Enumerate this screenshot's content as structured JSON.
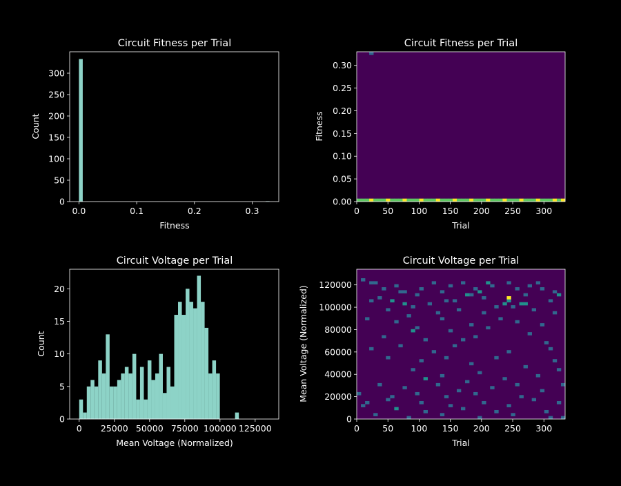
{
  "colors": {
    "background": "#000000",
    "foreground": "#ffffff",
    "bar": "#8dd3c7",
    "heat_low": "#440154",
    "heat_mid": "#31688e",
    "heat_mid2": "#21918c",
    "heat_high": "#5ec962",
    "heat_max": "#fde725"
  },
  "chart_data": [
    {
      "type": "bar",
      "title": "Circuit Fitness per Trial",
      "xlabel": "Fitness",
      "ylabel": "Count",
      "xlim": [
        -0.016,
        0.346
      ],
      "ylim": [
        0,
        350
      ],
      "xticks": [
        "0.0",
        "0.1",
        "0.2",
        "0.3"
      ],
      "xtick_values": [
        0.0,
        0.1,
        0.2,
        0.3
      ],
      "yticks": [
        "0",
        "50",
        "100",
        "150",
        "200",
        "250",
        "300"
      ],
      "ytick_values": [
        0,
        50,
        100,
        150,
        200,
        250,
        300
      ],
      "bins": [
        {
          "x0": 0.0,
          "x1": 0.0066,
          "count": 333
        },
        {
          "x0": 0.3234,
          "x1": 0.33,
          "count": 1
        }
      ]
    },
    {
      "type": "heatmap",
      "title": "Circuit Fitness per Trial",
      "xlabel": "Trial",
      "ylabel": "Fitness",
      "xlim": [
        0,
        334
      ],
      "ylim": [
        0,
        0.33
      ],
      "xticks": [
        "0",
        "50",
        "100",
        "150",
        "200",
        "250",
        "300"
      ],
      "xtick_values": [
        0,
        50,
        100,
        150,
        200,
        250,
        300
      ],
      "yticks": [
        "0.00",
        "0.05",
        "0.10",
        "0.15",
        "0.20",
        "0.25",
        "0.30"
      ],
      "ytick_values": [
        0,
        0.05,
        0.1,
        0.15,
        0.2,
        0.25,
        0.3
      ],
      "nx": 50,
      "ny": 50,
      "cells": [
        {
          "xi": 0,
          "yi": 0,
          "v": 3
        },
        {
          "xi": 1,
          "yi": 0,
          "v": 3
        },
        {
          "xi": 2,
          "yi": 0,
          "v": 3
        },
        {
          "xi": 3,
          "yi": 0,
          "v": 4
        },
        {
          "xi": 4,
          "yi": 0,
          "v": 3
        },
        {
          "xi": 5,
          "yi": 0,
          "v": 3
        },
        {
          "xi": 6,
          "yi": 0,
          "v": 3
        },
        {
          "xi": 7,
          "yi": 0,
          "v": 4
        },
        {
          "xi": 8,
          "yi": 0,
          "v": 3
        },
        {
          "xi": 9,
          "yi": 0,
          "v": 3
        },
        {
          "xi": 10,
          "yi": 0,
          "v": 3
        },
        {
          "xi": 11,
          "yi": 0,
          "v": 4
        },
        {
          "xi": 12,
          "yi": 0,
          "v": 3
        },
        {
          "xi": 13,
          "yi": 0,
          "v": 3
        },
        {
          "xi": 14,
          "yi": 0,
          "v": 3
        },
        {
          "xi": 15,
          "yi": 0,
          "v": 4
        },
        {
          "xi": 16,
          "yi": 0,
          "v": 3
        },
        {
          "xi": 17,
          "yi": 0,
          "v": 3
        },
        {
          "xi": 18,
          "yi": 0,
          "v": 3
        },
        {
          "xi": 19,
          "yi": 0,
          "v": 4
        },
        {
          "xi": 20,
          "yi": 0,
          "v": 3
        },
        {
          "xi": 21,
          "yi": 0,
          "v": 3
        },
        {
          "xi": 22,
          "yi": 0,
          "v": 3
        },
        {
          "xi": 23,
          "yi": 0,
          "v": 4
        },
        {
          "xi": 24,
          "yi": 0,
          "v": 3
        },
        {
          "xi": 25,
          "yi": 0,
          "v": 3
        },
        {
          "xi": 26,
          "yi": 0,
          "v": 3
        },
        {
          "xi": 27,
          "yi": 0,
          "v": 4
        },
        {
          "xi": 28,
          "yi": 0,
          "v": 3
        },
        {
          "xi": 29,
          "yi": 0,
          "v": 3
        },
        {
          "xi": 30,
          "yi": 0,
          "v": 3
        },
        {
          "xi": 31,
          "yi": 0,
          "v": 4
        },
        {
          "xi": 32,
          "yi": 0,
          "v": 3
        },
        {
          "xi": 33,
          "yi": 0,
          "v": 3
        },
        {
          "xi": 34,
          "yi": 0,
          "v": 3
        },
        {
          "xi": 35,
          "yi": 0,
          "v": 4
        },
        {
          "xi": 36,
          "yi": 0,
          "v": 3
        },
        {
          "xi": 37,
          "yi": 0,
          "v": 3
        },
        {
          "xi": 38,
          "yi": 0,
          "v": 3
        },
        {
          "xi": 39,
          "yi": 0,
          "v": 4
        },
        {
          "xi": 40,
          "yi": 0,
          "v": 3
        },
        {
          "xi": 41,
          "yi": 0,
          "v": 3
        },
        {
          "xi": 42,
          "yi": 0,
          "v": 3
        },
        {
          "xi": 43,
          "yi": 0,
          "v": 4
        },
        {
          "xi": 44,
          "yi": 0,
          "v": 3
        },
        {
          "xi": 45,
          "yi": 0,
          "v": 3
        },
        {
          "xi": 46,
          "yi": 0,
          "v": 3
        },
        {
          "xi": 47,
          "yi": 0,
          "v": 4
        },
        {
          "xi": 48,
          "yi": 0,
          "v": 3
        },
        {
          "xi": 49,
          "yi": 0,
          "v": 4
        },
        {
          "xi": 3,
          "yi": 49,
          "v": 1
        }
      ]
    },
    {
      "type": "bar",
      "title": "Circuit Voltage per Trial",
      "xlabel": "Mean Voltage (Normalized)",
      "ylabel": "Count",
      "xlim": [
        -6750,
        141750
      ],
      "ylim": [
        0,
        23
      ],
      "xticks": [
        "0",
        "25000",
        "50000",
        "75000",
        "100000",
        "125000"
      ],
      "xtick_values": [
        0,
        25000,
        50000,
        75000,
        100000,
        125000
      ],
      "yticks": [
        "0",
        "5",
        "10",
        "15",
        "20"
      ],
      "ytick_values": [
        0,
        5,
        10,
        15,
        20
      ],
      "bin_start": 0,
      "bin_width": 2700,
      "counts": [
        3,
        1,
        5,
        6,
        5,
        9,
        7,
        13,
        5,
        5,
        6,
        7,
        8,
        7,
        10,
        3,
        8,
        3,
        9,
        6,
        7,
        10,
        4,
        8,
        5,
        16,
        18,
        16,
        20,
        18,
        17,
        22,
        18,
        14,
        7,
        9,
        7,
        0,
        0,
        0,
        0,
        1
      ]
    },
    {
      "type": "heatmap",
      "title": "Circuit Voltage per Trial",
      "xlabel": "Trial",
      "ylabel": "Mean Voltage (Normalized)",
      "xlim": [
        0,
        334
      ],
      "ylim": [
        0,
        134000
      ],
      "xticks": [
        "0",
        "50",
        "100",
        "150",
        "200",
        "250",
        "300"
      ],
      "xtick_values": [
        0,
        50,
        100,
        150,
        200,
        250,
        300
      ],
      "yticks": [
        "0",
        "20000",
        "40000",
        "60000",
        "80000",
        "100000",
        "120000"
      ],
      "ytick_values": [
        0,
        20000,
        40000,
        60000,
        80000,
        100000,
        120000
      ],
      "nx": 50,
      "ny": 50,
      "cells": [
        {
          "xi": 1,
          "yi": 46,
          "v": 1
        },
        {
          "xi": 3,
          "yi": 45,
          "v": 1
        },
        {
          "xi": 4,
          "yi": 45,
          "v": 1
        },
        {
          "xi": 6,
          "yi": 43,
          "v": 1
        },
        {
          "xi": 9,
          "yi": 44,
          "v": 1
        },
        {
          "xi": 10,
          "yi": 42,
          "v": 1
        },
        {
          "xi": 11,
          "yi": 42,
          "v": 1
        },
        {
          "xi": 15,
          "yi": 43,
          "v": 1
        },
        {
          "xi": 18,
          "yi": 45,
          "v": 1
        },
        {
          "xi": 20,
          "yi": 42,
          "v": 1
        },
        {
          "xi": 22,
          "yi": 44,
          "v": 1
        },
        {
          "xi": 25,
          "yi": 45,
          "v": 1
        },
        {
          "xi": 27,
          "yi": 41,
          "v": 1
        },
        {
          "xi": 28,
          "yi": 43,
          "v": 1
        },
        {
          "xi": 30,
          "yi": 40,
          "v": 1
        },
        {
          "xi": 32,
          "yi": 44,
          "v": 1
        },
        {
          "xi": 36,
          "yi": 45,
          "v": 1
        },
        {
          "xi": 38,
          "yi": 43,
          "v": 1
        },
        {
          "xi": 40,
          "yi": 41,
          "v": 1
        },
        {
          "xi": 41,
          "yi": 44,
          "v": 1
        },
        {
          "xi": 43,
          "yi": 45,
          "v": 1
        },
        {
          "xi": 44,
          "yi": 43,
          "v": 1
        },
        {
          "xi": 47,
          "yi": 42,
          "v": 1
        },
        {
          "xi": 48,
          "yi": 41,
          "v": 2
        },
        {
          "xi": 26,
          "yi": 41,
          "v": 2
        },
        {
          "xi": 29,
          "yi": 42,
          "v": 2
        },
        {
          "xi": 31,
          "yi": 45,
          "v": 2
        },
        {
          "xi": 35,
          "yi": 38,
          "v": 2
        },
        {
          "xi": 36,
          "yi": 39,
          "v": 2
        },
        {
          "xi": 39,
          "yi": 38,
          "v": 2
        },
        {
          "xi": 40,
          "yi": 38,
          "v": 2
        },
        {
          "xi": 8,
          "yi": 39,
          "v": 2
        },
        {
          "xi": 11,
          "yi": 38,
          "v": 2
        },
        {
          "xi": 14,
          "yi": 41,
          "v": 1
        },
        {
          "xi": 21,
          "yi": 39,
          "v": 1
        },
        {
          "xi": 36,
          "yi": 40,
          "v": 4
        },
        {
          "xi": 3,
          "yi": 39,
          "v": 1
        },
        {
          "xi": 5,
          "yi": 40,
          "v": 1
        },
        {
          "xi": 13,
          "yi": 37,
          "v": 1
        },
        {
          "xi": 17,
          "yi": 38,
          "v": 1
        },
        {
          "xi": 23,
          "yi": 39,
          "v": 1
        },
        {
          "xi": 33,
          "yi": 37,
          "v": 1
        },
        {
          "xi": 37,
          "yi": 37,
          "v": 1
        },
        {
          "xi": 46,
          "yi": 39,
          "v": 1
        },
        {
          "xi": 7,
          "yi": 36,
          "v": 1
        },
        {
          "xi": 12,
          "yi": 34,
          "v": 1
        },
        {
          "xi": 19,
          "yi": 35,
          "v": 1
        },
        {
          "xi": 24,
          "yi": 36,
          "v": 1
        },
        {
          "xi": 30,
          "yi": 35,
          "v": 1
        },
        {
          "xi": 34,
          "yi": 33,
          "v": 1
        },
        {
          "xi": 42,
          "yi": 36,
          "v": 1
        },
        {
          "xi": 47,
          "yi": 35,
          "v": 1
        },
        {
          "xi": 2,
          "yi": 33,
          "v": 1
        },
        {
          "xi": 9,
          "yi": 32,
          "v": 1
        },
        {
          "xi": 14,
          "yi": 30,
          "v": 1
        },
        {
          "xi": 20,
          "yi": 33,
          "v": 1
        },
        {
          "xi": 27,
          "yi": 31,
          "v": 1
        },
        {
          "xi": 31,
          "yi": 30,
          "v": 1
        },
        {
          "xi": 38,
          "yi": 32,
          "v": 1
        },
        {
          "xi": 44,
          "yi": 31,
          "v": 1
        },
        {
          "xi": 13,
          "yi": 29,
          "v": 2
        },
        {
          "xi": 22,
          "yi": 29,
          "v": 1
        },
        {
          "xi": 28,
          "yi": 27,
          "v": 1
        },
        {
          "xi": 41,
          "yi": 28,
          "v": 1
        },
        {
          "xi": 6,
          "yi": 27,
          "v": 1
        },
        {
          "xi": 16,
          "yi": 26,
          "v": 1
        },
        {
          "xi": 25,
          "yi": 26,
          "v": 1
        },
        {
          "xi": 45,
          "yi": 25,
          "v": 1
        },
        {
          "xi": 3,
          "yi": 23,
          "v": 1
        },
        {
          "xi": 10,
          "yi": 24,
          "v": 1
        },
        {
          "xi": 18,
          "yi": 22,
          "v": 1
        },
        {
          "xi": 23,
          "yi": 24,
          "v": 1
        },
        {
          "xi": 36,
          "yi": 22,
          "v": 1
        },
        {
          "xi": 46,
          "yi": 23,
          "v": 1
        },
        {
          "xi": 7,
          "yi": 20,
          "v": 1
        },
        {
          "xi": 15,
          "yi": 19,
          "v": 1
        },
        {
          "xi": 21,
          "yi": 20,
          "v": 1
        },
        {
          "xi": 27,
          "yi": 18,
          "v": 1
        },
        {
          "xi": 33,
          "yi": 20,
          "v": 1
        },
        {
          "xi": 40,
          "yi": 17,
          "v": 1
        },
        {
          "xi": 47,
          "yi": 19,
          "v": 1
        },
        {
          "xi": 13,
          "yi": 16,
          "v": 1
        },
        {
          "xi": 20,
          "yi": 14,
          "v": 1
        },
        {
          "xi": 29,
          "yi": 15,
          "v": 1
        },
        {
          "xi": 16,
          "yi": 13,
          "v": 2
        },
        {
          "xi": 26,
          "yi": 12,
          "v": 1
        },
        {
          "xi": 35,
          "yi": 13,
          "v": 1
        },
        {
          "xi": 43,
          "yi": 14,
          "v": 1
        },
        {
          "xi": 5,
          "yi": 11,
          "v": 1
        },
        {
          "xi": 11,
          "yi": 10,
          "v": 1
        },
        {
          "xi": 19,
          "yi": 11,
          "v": 1
        },
        {
          "xi": 24,
          "yi": 9,
          "v": 1
        },
        {
          "xi": 32,
          "yi": 10,
          "v": 1
        },
        {
          "xi": 38,
          "yi": 11,
          "v": 1
        },
        {
          "xi": 44,
          "yi": 9,
          "v": 1
        },
        {
          "xi": 8,
          "yi": 7,
          "v": 1
        },
        {
          "xi": 14,
          "yi": 8,
          "v": 1
        },
        {
          "xi": 21,
          "yi": 7,
          "v": 1
        },
        {
          "xi": 28,
          "yi": 8,
          "v": 1
        },
        {
          "xi": 39,
          "yi": 7,
          "v": 1
        },
        {
          "xi": 2,
          "yi": 5,
          "v": 1
        },
        {
          "xi": 7,
          "yi": 6,
          "v": 1
        },
        {
          "xi": 15,
          "yi": 5,
          "v": 1
        },
        {
          "xi": 22,
          "yi": 4,
          "v": 1
        },
        {
          "xi": 30,
          "yi": 5,
          "v": 1
        },
        {
          "xi": 36,
          "yi": 4,
          "v": 1
        },
        {
          "xi": 42,
          "yi": 6,
          "v": 1
        },
        {
          "xi": 48,
          "yi": 5,
          "v": 1
        },
        {
          "xi": 9,
          "yi": 3,
          "v": 2
        },
        {
          "xi": 16,
          "yi": 2,
          "v": 1
        },
        {
          "xi": 25,
          "yi": 3,
          "v": 1
        },
        {
          "xi": 33,
          "yi": 2,
          "v": 1
        },
        {
          "xi": 45,
          "yi": 2,
          "v": 1
        },
        {
          "xi": 4,
          "yi": 1,
          "v": 1
        },
        {
          "xi": 12,
          "yi": 0,
          "v": 1
        },
        {
          "xi": 20,
          "yi": 1,
          "v": 1
        },
        {
          "xi": 29,
          "yi": 0,
          "v": 1
        },
        {
          "xi": 37,
          "yi": 1,
          "v": 1
        },
        {
          "xi": 46,
          "yi": 0,
          "v": 1
        },
        {
          "xi": 49,
          "yi": 0,
          "v": 1
        },
        {
          "xi": 1,
          "yi": 4,
          "v": 1
        },
        {
          "xi": 0,
          "yi": 8,
          "v": 1
        },
        {
          "xi": 49,
          "yi": 11,
          "v": 1
        },
        {
          "xi": 48,
          "yi": 16,
          "v": 1
        }
      ]
    }
  ]
}
